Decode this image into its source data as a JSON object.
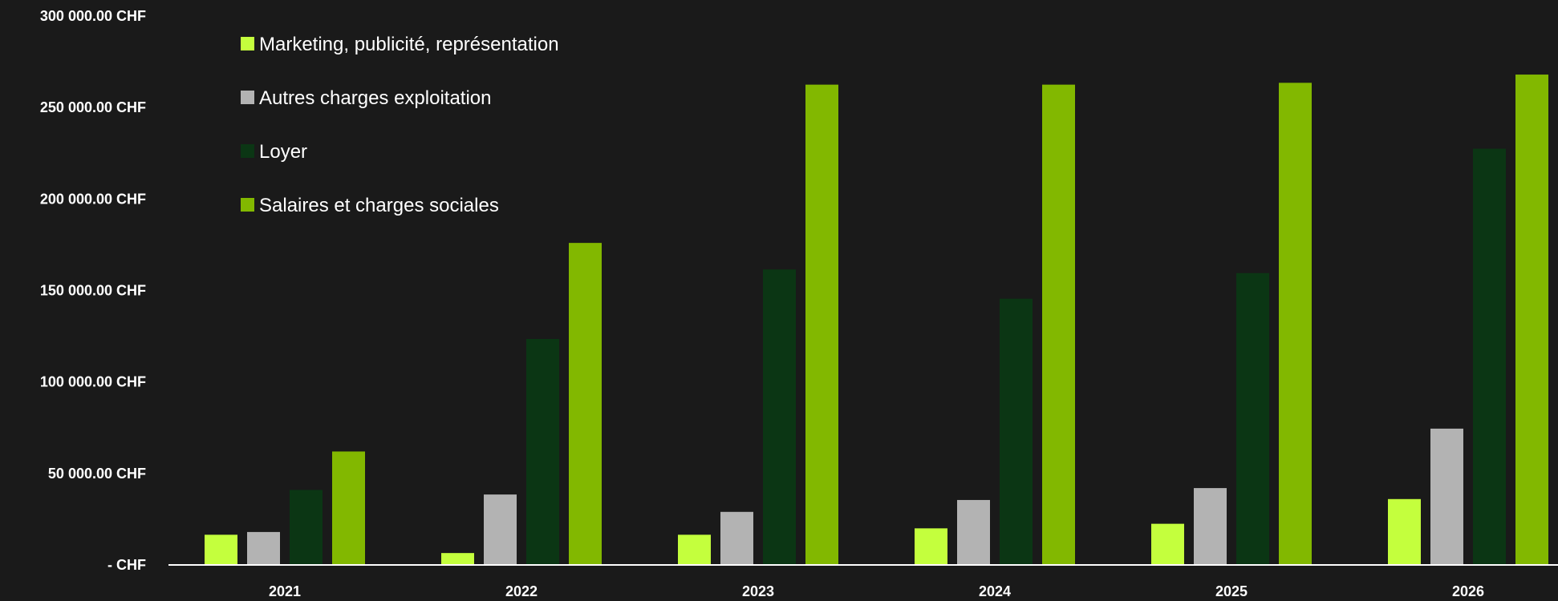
{
  "chart_data": {
    "type": "bar",
    "categories": [
      "2021",
      "2022",
      "2023",
      "2024",
      "2025",
      "2026"
    ],
    "series": [
      {
        "name": "Marketing, publicité, représentation",
        "color": "#c4ff3d",
        "values": [
          16500,
          6500,
          16500,
          20000,
          22500,
          36000
        ]
      },
      {
        "name": "Autres charges exploitation",
        "color": "#b3b3b3",
        "values": [
          18000,
          38500,
          29000,
          35500,
          42000,
          74500
        ]
      },
      {
        "name": "Loyer",
        "color": "#0b3614",
        "values": [
          41000,
          123500,
          161500,
          145500,
          159500,
          227500
        ]
      },
      {
        "name": "Salaires et charges sociales",
        "color": "#82b800",
        "values": [
          62000,
          176000,
          262500,
          262500,
          263500,
          268000
        ]
      }
    ],
    "ylim": [
      0,
      300000
    ],
    "yticks": [
      0,
      50000,
      100000,
      150000,
      200000,
      250000,
      300000
    ],
    "ytick_labels": [
      "-  CHF",
      "50 000.00 CHF",
      "100 000.00 CHF",
      "150 000.00 CHF",
      "200 000.00 CHF",
      "250 000.00 CHF",
      "300 000.00 CHF"
    ],
    "title": "",
    "xlabel": "",
    "ylabel": "",
    "grid": false,
    "legend_position": "top-left",
    "background": "#1a1a1a",
    "text_color": "#ffffff",
    "axis_color": "#ffffff"
  }
}
